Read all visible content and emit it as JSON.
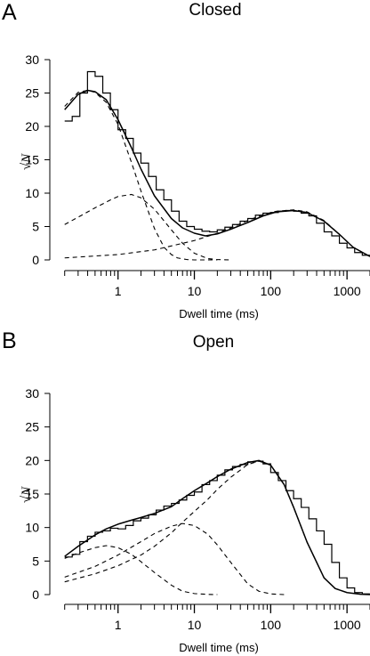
{
  "chart_data": [
    {
      "type": "line",
      "panel": "A",
      "title": "Closed",
      "xlabel": "Dwell time (ms)",
      "ylabel": "√N",
      "xscale": "log",
      "xlim": [
        0.15,
        2000
      ],
      "ylim": [
        0,
        30
      ],
      "xticks": [
        1,
        10,
        100,
        1000
      ],
      "xtick_labels": [
        "1",
        "10",
        "100",
        "1000"
      ],
      "yticks": [
        0,
        5,
        10,
        15,
        20,
        25,
        30
      ],
      "ytick_labels": [
        "0",
        "5",
        "10",
        "15",
        "20",
        "25",
        "30"
      ],
      "histogram": {
        "edges": [
          0.2,
          0.251,
          0.316,
          0.398,
          0.501,
          0.631,
          0.794,
          1.0,
          1.259,
          1.585,
          1.995,
          2.512,
          3.162,
          3.981,
          5.012,
          6.31,
          7.943,
          10.0,
          12.59,
          15.85,
          19.95,
          25.12,
          31.62,
          39.81,
          50.12,
          63.1,
          79.43,
          100.0,
          125.9,
          158.5,
          199.5,
          251.2,
          316.2,
          398.1,
          501.2,
          631.0,
          794.3,
          1000.0,
          1259.0,
          1585.0,
          1995.0
        ],
        "values": [
          20.8,
          21.5,
          25.0,
          28.2,
          27.5,
          25.0,
          22.5,
          19.5,
          18.2,
          16.0,
          14.5,
          12.5,
          10.5,
          9.0,
          7.3,
          5.8,
          5.0,
          4.6,
          4.3,
          4.2,
          4.5,
          4.9,
          5.3,
          5.8,
          6.2,
          6.7,
          7.0,
          7.1,
          7.3,
          7.4,
          7.3,
          7.0,
          6.6,
          5.5,
          4.2,
          3.6,
          2.5,
          1.8,
          1.1,
          0.7
        ]
      },
      "fit": {
        "x": [
          0.2,
          0.3,
          0.4,
          0.5,
          0.7,
          1.0,
          1.5,
          2.0,
          3.0,
          5.0,
          7.0,
          10,
          14,
          20,
          30,
          50,
          80,
          120,
          200,
          300,
          500,
          800,
          1200,
          2000
        ],
        "y": [
          22.5,
          24.8,
          25.4,
          25.2,
          24.0,
          21.0,
          16.8,
          13.6,
          9.6,
          6.2,
          4.8,
          4.0,
          3.6,
          3.9,
          4.6,
          5.6,
          6.6,
          7.2,
          7.4,
          7.1,
          5.8,
          3.8,
          1.9,
          0.5
        ]
      },
      "components": [
        {
          "x": [
            0.2,
            0.3,
            0.4,
            0.5,
            0.7,
            1.0,
            1.5,
            2.0,
            3.0,
            4.0,
            5.0,
            6.0,
            8.0,
            10,
            20
          ],
          "y": [
            23.0,
            25.1,
            25.4,
            25.1,
            23.6,
            20.3,
            14.6,
            10.3,
            4.7,
            1.9,
            0.8,
            0.3,
            0.05,
            0,
            0
          ]
        },
        {
          "x": [
            0.2,
            0.3,
            0.5,
            0.8,
            1.0,
            1.5,
            2.0,
            3.0,
            5.0,
            7.0,
            10,
            15,
            20,
            30
          ],
          "y": [
            5.3,
            6.4,
            7.8,
            9.0,
            9.5,
            9.8,
            9.3,
            7.6,
            4.5,
            2.5,
            1.0,
            0.2,
            0.05,
            0
          ]
        },
        {
          "x": [
            0.2,
            1.0,
            3.0,
            10,
            20,
            30,
            50,
            80,
            120,
            200,
            300,
            500,
            800,
            1200,
            2000
          ],
          "y": [
            0.3,
            0.8,
            1.5,
            2.9,
            4.0,
            4.8,
            5.9,
            6.8,
            7.3,
            7.5,
            7.2,
            5.9,
            3.8,
            1.9,
            0.5
          ]
        }
      ]
    },
    {
      "type": "line",
      "panel": "B",
      "title": "Open",
      "xlabel": "Dwell time (ms)",
      "ylabel": "√N",
      "xscale": "log",
      "xlim": [
        0.15,
        2000
      ],
      "ylim": [
        0,
        30
      ],
      "xticks": [
        1,
        10,
        100,
        1000
      ],
      "xtick_labels": [
        "1",
        "10",
        "100",
        "1000"
      ],
      "yticks": [
        0,
        5,
        10,
        15,
        20,
        25,
        30
      ],
      "ytick_labels": [
        "0",
        "5",
        "10",
        "15",
        "20",
        "25",
        "30"
      ],
      "histogram": {
        "edges": [
          0.2,
          0.251,
          0.316,
          0.398,
          0.501,
          0.631,
          0.794,
          1.0,
          1.259,
          1.585,
          1.995,
          2.512,
          3.162,
          3.981,
          5.012,
          6.31,
          7.943,
          10.0,
          12.59,
          15.85,
          19.95,
          25.12,
          31.62,
          39.81,
          50.12,
          63.1,
          79.43,
          100.0,
          125.9,
          158.5,
          199.5,
          251.2,
          316.2,
          398.1,
          501.2,
          631.0,
          794.3,
          1000.0,
          1259.0,
          1585.0,
          1995.0
        ],
        "values": [
          5.6,
          6.0,
          7.9,
          8.7,
          9.3,
          9.5,
          9.9,
          9.8,
          10.3,
          11.0,
          11.4,
          11.9,
          12.6,
          13.2,
          13.6,
          14.1,
          14.8,
          15.3,
          16.4,
          17.0,
          17.8,
          18.6,
          19.1,
          19.4,
          19.8,
          19.9,
          19.5,
          18.2,
          17.0,
          15.5,
          14.3,
          13.0,
          11.3,
          9.5,
          7.5,
          4.8,
          2.5,
          1.0,
          0.3,
          0.1
        ]
      },
      "fit": {
        "x": [
          0.2,
          0.3,
          0.5,
          0.7,
          1.0,
          1.5,
          2.0,
          3.0,
          5.0,
          7.0,
          10,
          15,
          20,
          30,
          50,
          70,
          100,
          150,
          200,
          300,
          500,
          700,
          1000,
          1500,
          2000
        ],
        "y": [
          5.7,
          7.2,
          8.9,
          9.8,
          10.5,
          11.1,
          11.5,
          12.1,
          13.1,
          14.3,
          15.5,
          16.7,
          17.6,
          18.7,
          19.7,
          20.0,
          19.3,
          16.4,
          13.0,
          7.8,
          2.5,
          0.9,
          0.3,
          0.05,
          0
        ]
      },
      "components": [
        {
          "x": [
            0.2,
            0.3,
            0.5,
            0.7,
            1.0,
            1.5,
            2.0,
            3.0,
            5.0,
            7.0,
            10,
            15,
            20
          ],
          "y": [
            5.4,
            6.2,
            7.0,
            7.3,
            7.0,
            6.0,
            4.9,
            3.3,
            1.4,
            0.5,
            0.15,
            0.03,
            0
          ]
        },
        {
          "x": [
            0.2,
            0.5,
            1.0,
            2.0,
            3.0,
            5.0,
            7.0,
            10,
            15,
            20,
            30,
            50,
            70,
            100,
            150
          ],
          "y": [
            2.6,
            4.2,
            5.9,
            7.9,
            9.1,
            10.2,
            10.6,
            10.3,
            9.0,
            7.4,
            4.8,
            1.6,
            0.5,
            0.1,
            0
          ]
        },
        {
          "x": [
            0.2,
            0.5,
            1.0,
            2.0,
            3.0,
            5.0,
            7.0,
            10,
            15,
            20,
            30,
            50,
            70,
            100,
            150,
            200,
            300,
            500,
            700,
            1000
          ],
          "y": [
            1.9,
            3.1,
            4.3,
            5.9,
            7.2,
            9.2,
            10.8,
            12.4,
            14.2,
            15.7,
            17.5,
            19.4,
            19.9,
            19.3,
            16.4,
            13.0,
            7.8,
            2.5,
            0.9,
            0.3
          ]
        }
      ]
    }
  ]
}
